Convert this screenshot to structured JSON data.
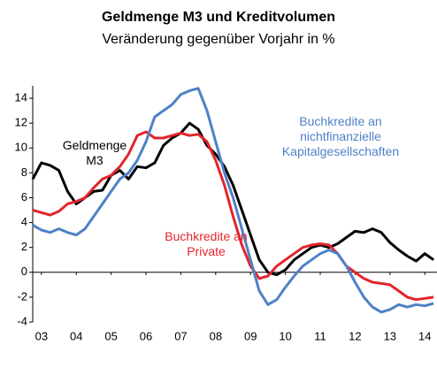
{
  "chart_data": {
    "type": "line",
    "title": "Geldmenge M3 und Kreditvolumen",
    "subtitle": "Veränderung gegenüber Vorjahr in %",
    "x": [
      2003.25,
      2003.5,
      2003.75,
      2004,
      2004.25,
      2004.5,
      2004.75,
      2005,
      2005.25,
      2005.5,
      2005.75,
      2006,
      2006.25,
      2006.5,
      2006.75,
      2007,
      2007.25,
      2007.5,
      2007.75,
      2008,
      2008.25,
      2008.5,
      2008.75,
      2009,
      2009.25,
      2009.5,
      2009.75,
      2010,
      2010.25,
      2010.5,
      2010.75,
      2011,
      2011.25,
      2011.5,
      2011.75,
      2012,
      2012.25,
      2012.5,
      2012.75,
      2013,
      2013.25,
      2013.5,
      2013.75,
      2014,
      2014.25,
      2014.5,
      2014.75
    ],
    "series": [
      {
        "name": "Geldmenge M3",
        "color": "#000000",
        "values": [
          7.5,
          8.8,
          8.6,
          8.2,
          6.5,
          5.5,
          6.0,
          6.5,
          6.6,
          7.8,
          8.2,
          7.5,
          8.5,
          8.4,
          8.8,
          10.2,
          10.8,
          11.2,
          12.0,
          11.5,
          10.2,
          9.5,
          8.5,
          7.0,
          5.0,
          3.0,
          1.0,
          0.0,
          -0.2,
          0.2,
          1.0,
          1.5,
          2.0,
          2.2,
          2.0,
          2.3,
          2.8,
          3.3,
          3.2,
          3.5,
          3.2,
          2.4,
          1.8,
          1.3,
          0.9,
          1.5,
          1.0
        ]
      },
      {
        "name": "Buchkredite an Private",
        "color": "#e3242b",
        "values": [
          5.0,
          4.8,
          4.6,
          4.9,
          5.5,
          5.7,
          6.0,
          6.8,
          7.5,
          7.8,
          8.5,
          9.5,
          11.0,
          11.3,
          10.8,
          10.8,
          11.0,
          11.2,
          11.0,
          11.1,
          10.5,
          9.0,
          7.0,
          4.5,
          2.2,
          0.5,
          -0.5,
          -0.3,
          0.5,
          1.0,
          1.5,
          2.0,
          2.2,
          2.3,
          2.2,
          1.5,
          0.5,
          0.0,
          -0.5,
          -0.8,
          -0.9,
          -1.0,
          -1.5,
          -2.0,
          -2.2,
          -2.1,
          -2.0
        ]
      },
      {
        "name": "Buchkredite an nichtfinanzielle Kapitalgesellschaften",
        "color": "#4f81c7",
        "values": [
          3.8,
          3.4,
          3.2,
          3.5,
          3.2,
          3.0,
          3.5,
          4.5,
          5.5,
          6.5,
          7.5,
          8.0,
          9.0,
          10.5,
          12.5,
          13.0,
          13.5,
          14.3,
          14.6,
          14.8,
          13.0,
          10.5,
          8.0,
          6.0,
          3.5,
          1.0,
          -1.5,
          -2.6,
          -2.2,
          -1.2,
          -0.3,
          0.5,
          1.0,
          1.5,
          1.8,
          1.5,
          0.5,
          -0.8,
          -2.0,
          -2.8,
          -3.2,
          -3.0,
          -2.6,
          -2.8,
          -2.6,
          -2.7,
          -2.5
        ]
      }
    ],
    "xlim": [
      2003.25,
      2014.85
    ],
    "xticks": [
      {
        "value": 2003.5,
        "label": "03"
      },
      {
        "value": 2004.5,
        "label": "04"
      },
      {
        "value": 2005.5,
        "label": "05"
      },
      {
        "value": 2006.5,
        "label": "06"
      },
      {
        "value": 2007.5,
        "label": "07"
      },
      {
        "value": 2008.5,
        "label": "08"
      },
      {
        "value": 2009.5,
        "label": "09"
      },
      {
        "value": 2010.5,
        "label": "10"
      },
      {
        "value": 2011.5,
        "label": "11"
      },
      {
        "value": 2012.5,
        "label": "12"
      },
      {
        "value": 2013.5,
        "label": "13"
      },
      {
        "value": 2014.5,
        "label": "14"
      }
    ],
    "ylim": [
      -4,
      15
    ],
    "yticks": [
      -4,
      -2,
      0,
      2,
      4,
      6,
      8,
      10,
      12,
      14
    ]
  }
}
